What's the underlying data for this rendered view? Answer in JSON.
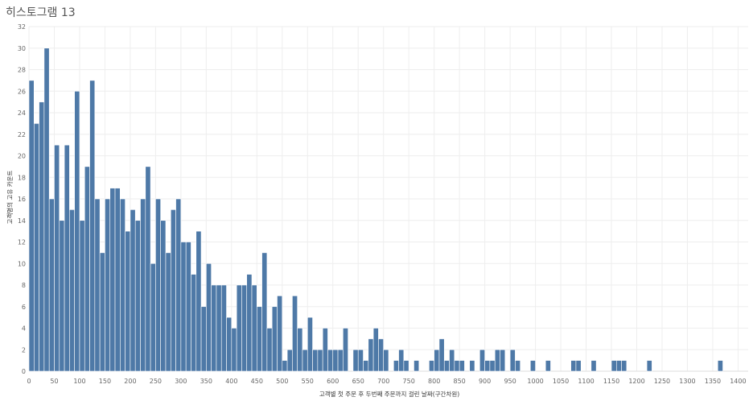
{
  "title": "히스토그램 13",
  "colors": {
    "bar": "#4e79a7",
    "bar_stroke": "#ffffff",
    "grid": "#eeeeee"
  },
  "chart_data": {
    "type": "bar",
    "xlabel": "고객별 첫 주문 후 두번째 주문까지 걸린 날짜(구간차원)",
    "ylabel": "고객명의 고유 카운트",
    "ylim": [
      0,
      32
    ],
    "xlim": [
      0,
      1420
    ],
    "bin_width": 10,
    "grid": true,
    "y_ticks": [
      0,
      2,
      4,
      6,
      8,
      10,
      12,
      14,
      16,
      18,
      20,
      22,
      24,
      26,
      28,
      30,
      32
    ],
    "x_ticks": [
      0,
      50,
      100,
      150,
      200,
      250,
      300,
      350,
      400,
      450,
      500,
      550,
      600,
      650,
      700,
      750,
      800,
      850,
      900,
      950,
      1000,
      1050,
      1100,
      1150,
      1200,
      1250,
      1300,
      1350,
      1400
    ],
    "bins": [
      0,
      10,
      20,
      30,
      40,
      50,
      60,
      70,
      80,
      90,
      100,
      110,
      120,
      130,
      140,
      150,
      160,
      170,
      180,
      190,
      200,
      210,
      220,
      230,
      240,
      250,
      260,
      270,
      280,
      290,
      300,
      310,
      320,
      330,
      340,
      350,
      360,
      370,
      380,
      390,
      400,
      410,
      420,
      430,
      440,
      450,
      460,
      470,
      480,
      490,
      500,
      510,
      520,
      530,
      540,
      550,
      560,
      570,
      580,
      590,
      600,
      610,
      620,
      640,
      650,
      660,
      670,
      680,
      690,
      700,
      720,
      730,
      740,
      760,
      790,
      800,
      810,
      820,
      830,
      840,
      850,
      870,
      890,
      900,
      910,
      920,
      930,
      950,
      960,
      990,
      1020,
      1070,
      1080,
      1110,
      1150,
      1160,
      1170,
      1220,
      1360
    ],
    "values": [
      27,
      23,
      25,
      30,
      16,
      21,
      14,
      21,
      15,
      26,
      14,
      19,
      27,
      16,
      11,
      16,
      17,
      17,
      16,
      13,
      15,
      14,
      16,
      19,
      10,
      16,
      14,
      11,
      15,
      16,
      12,
      12,
      9,
      13,
      6,
      10,
      8,
      8,
      8,
      5,
      4,
      8,
      8,
      9,
      8,
      6,
      11,
      4,
      6,
      7,
      1,
      2,
      7,
      4,
      2,
      5,
      2,
      2,
      4,
      2,
      2,
      2,
      4,
      2,
      2,
      1,
      3,
      4,
      3,
      2,
      1,
      2,
      1,
      1,
      1,
      2,
      3,
      1,
      2,
      1,
      1,
      1,
      2,
      1,
      1,
      2,
      2,
      2,
      1,
      1,
      1,
      1,
      1,
      1,
      1,
      1,
      1,
      1,
      1
    ]
  }
}
